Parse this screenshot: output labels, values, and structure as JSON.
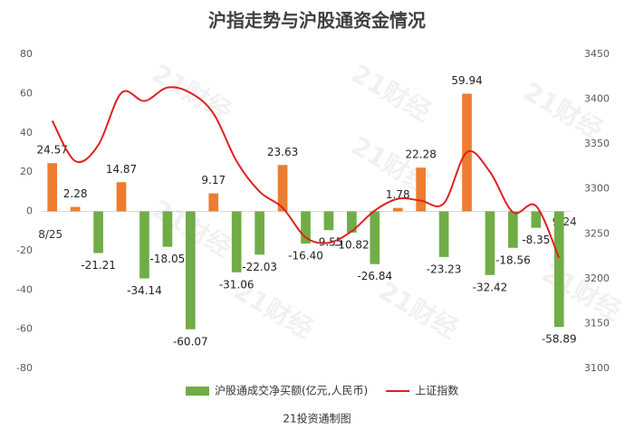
{
  "chart_data": {
    "type": "bar-line",
    "title": "沪指走势与沪股通资金情况",
    "source": "21投资通制图",
    "watermark": "21财经",
    "categories": [
      "8/25",
      null,
      null,
      null,
      null,
      null,
      null,
      null,
      null,
      null,
      null,
      null,
      null,
      null,
      null,
      null,
      null,
      null,
      null,
      null,
      null,
      null,
      "9/24"
    ],
    "series": [
      {
        "name": "沪股通成交净买额(亿元,人民币)",
        "type": "bar",
        "color": "#70ad47",
        "positive_color": "#ed7d31",
        "values": [
          24.57,
          2.28,
          -21.21,
          14.87,
          -34.14,
          -18.05,
          -60.07,
          9.17,
          -31.06,
          -22.03,
          23.63,
          -16.4,
          -9.55,
          -10.82,
          -26.84,
          1.78,
          22.28,
          -23.23,
          59.94,
          -32.42,
          -18.56,
          -8.35,
          -58.89
        ],
        "value_labels": [
          "24.57",
          "2.28",
          "-21.21",
          "14.87",
          "-34.14",
          "-18.05",
          "-60.07",
          "9.17",
          "-31.06",
          "-22.03",
          "23.63",
          "-16.40",
          "-9.55",
          "-10.82",
          "-26.84",
          "1.78",
          "22.28",
          "-23.23",
          "59.94",
          "-32.42",
          "-18.56",
          "-8.35",
          "-58.89"
        ]
      },
      {
        "name": "上证指数",
        "type": "line",
        "axis": "y2",
        "color": "#e02020",
        "values": [
          3376,
          3331,
          3349,
          3407,
          3398,
          3413,
          3407,
          3384,
          3331,
          3297,
          3279,
          3246,
          3240,
          3253,
          3276,
          3289,
          3287,
          3284,
          3341,
          3319,
          3274,
          3281,
          3223
        ]
      }
    ],
    "ylim": [
      -80,
      80
    ],
    "yticks": [
      -80,
      -60,
      -40,
      -20,
      0,
      20,
      40,
      60,
      80
    ],
    "y2lim": [
      3100,
      3450
    ],
    "y2ticks": [
      3100,
      3150,
      3200,
      3250,
      3300,
      3350,
      3400,
      3450
    ],
    "grid": false
  }
}
